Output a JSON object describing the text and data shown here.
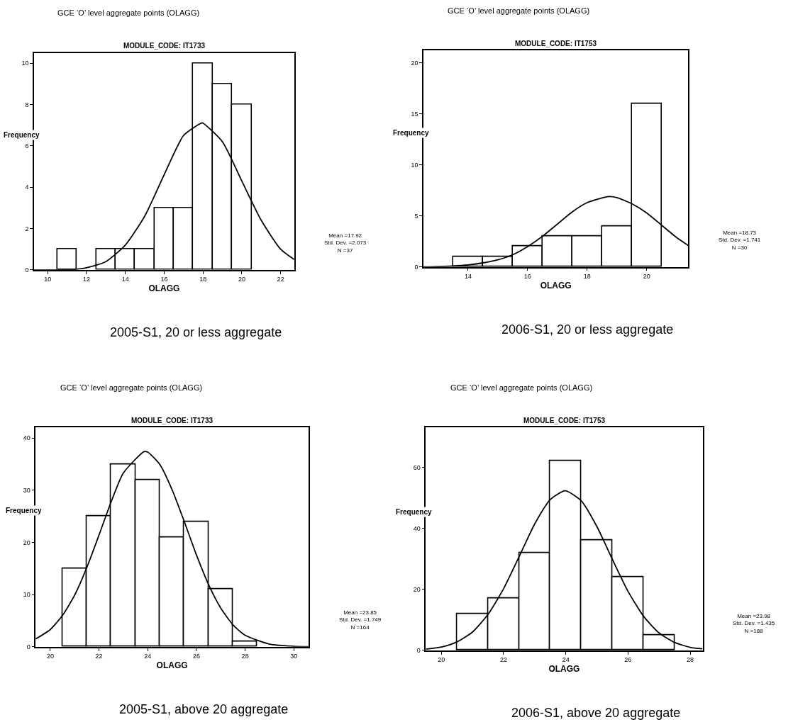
{
  "chart_data": [
    {
      "type": "histogram",
      "title": "GCE ‘O’ level aggregate points (OLAGG)",
      "subtitle": "MODULE_CODE: IT1733",
      "xlabel": "OLAGG",
      "ylabel": "Frequency",
      "series": [
        {
          "color": "#ffffff",
          "bins": [
            10.5,
            11.5,
            12.5,
            13.5,
            14.5,
            15.5,
            16.5,
            17.5,
            18.5,
            19.5,
            20.5
          ],
          "values": [
            1,
            0,
            1,
            1,
            1,
            3,
            3,
            10,
            9,
            8
          ]
        },
        {
          "type": "line",
          "color": "#000000",
          "x": [
            9.3,
            10,
            11,
            12,
            13,
            14,
            15,
            16,
            17,
            17.92,
            18,
            19,
            20,
            21,
            22,
            22.7
          ],
          "values": [
            0.0,
            0.0,
            0.0,
            0.1,
            0.4,
            1.2,
            2.6,
            4.6,
            6.5,
            7.1,
            7.1,
            6.2,
            4.3,
            2.4,
            1.0,
            0.5
          ]
        }
      ],
      "xlim": [
        9.3,
        22.7
      ],
      "ylim": [
        0,
        10.5
      ],
      "xticks": [
        10,
        12,
        14,
        16,
        18,
        20,
        22
      ],
      "yticks": [
        0,
        2,
        4,
        6,
        8,
        10
      ],
      "annotations": [
        "Mean =17.92\nStd. Dev. =2.073\nN =37",
        "2005-S1, 20 or less aggregate"
      ]
    },
    {
      "type": "histogram",
      "title": "GCE ‘O’ level aggregate points (OLAGG)",
      "subtitle": "MODULE_CODE: IT1753",
      "xlabel": "OLAGG",
      "ylabel": "Frequency",
      "series": [
        {
          "color": "#ffffff",
          "bins": [
            13.5,
            14.5,
            15.5,
            16.5,
            17.5,
            18.5,
            19.5,
            20.5
          ],
          "values": [
            1,
            1,
            2,
            3,
            3,
            4,
            16
          ]
        },
        {
          "type": "line",
          "color": "#000000",
          "x": [
            12.5,
            13.5,
            14,
            14.5,
            15,
            15.5,
            16,
            16.5,
            17,
            17.5,
            18,
            18.73,
            19,
            19.5,
            20,
            20.5,
            21,
            21.4
          ],
          "values": [
            0.0,
            0.1,
            0.2,
            0.4,
            0.7,
            1.2,
            2.0,
            3.0,
            4.2,
            5.4,
            6.3,
            6.9,
            6.8,
            6.2,
            5.3,
            4.1,
            2.9,
            2.1
          ]
        }
      ],
      "xlim": [
        12.5,
        21.4
      ],
      "ylim": [
        0,
        21.2
      ],
      "xticks": [
        14,
        16,
        18,
        20
      ],
      "yticks": [
        0,
        5,
        10,
        15,
        20
      ],
      "annotations": [
        "Mean =18.73\nStd. Dev. =1.741\nN =30",
        "2006-S1, 20 or less aggregate"
      ]
    },
    {
      "type": "histogram",
      "title": "GCE ‘O’ level aggregate points (OLAGG)",
      "subtitle": "MODULE_CODE: IT1733",
      "xlabel": "OLAGG",
      "ylabel": "Frequency",
      "series": [
        {
          "color": "#ffffff",
          "bins": [
            20.5,
            21.5,
            22.5,
            23.5,
            24.5,
            25.5,
            26.5,
            27.5,
            28.5
          ],
          "values": [
            15,
            25,
            35,
            32,
            21,
            24,
            11,
            1
          ]
        },
        {
          "type": "line",
          "color": "#000000",
          "x": [
            19.4,
            20,
            20.5,
            21,
            21.5,
            22,
            22.5,
            23,
            23.85,
            24,
            24.5,
            25,
            25.5,
            26,
            26.5,
            27,
            27.5,
            28,
            29,
            30,
            30.6
          ],
          "values": [
            1.5,
            3.3,
            6.0,
            9.9,
            15.2,
            21.4,
            27.8,
            33.3,
            37.4,
            37.3,
            34.9,
            30.1,
            24.0,
            17.6,
            11.9,
            7.4,
            4.2,
            2.2,
            0.5,
            0.1,
            0.0
          ]
        }
      ],
      "xlim": [
        19.4,
        30.6
      ],
      "ylim": [
        0,
        42
      ],
      "xticks": [
        20,
        22,
        24,
        26,
        28,
        30
      ],
      "yticks": [
        0,
        10,
        20,
        30,
        40
      ],
      "annotations": [
        "Mean =23.85\nStd. Dev. =1.749\nN =164",
        "2005-S1, above 20 aggregate"
      ]
    },
    {
      "type": "histogram",
      "title": "GCE ‘O’ level aggregate points (OLAGG)",
      "subtitle": "MODULE_CODE: IT1753",
      "xlabel": "OLAGG",
      "ylabel": "Frequency",
      "series": [
        {
          "color": "#ffffff",
          "bins": [
            20.5,
            21.5,
            22.5,
            23.5,
            24.5,
            25.5,
            26.5,
            27.5
          ],
          "values": [
            12,
            17,
            32,
            62,
            36,
            24,
            5
          ]
        },
        {
          "type": "line",
          "color": "#000000",
          "x": [
            19.5,
            20,
            20.5,
            21,
            21.5,
            22,
            22.5,
            23,
            23.5,
            23.98,
            24.5,
            25,
            25.5,
            26,
            26.5,
            27,
            27.5,
            28,
            28.4
          ],
          "values": [
            0.4,
            1.1,
            2.8,
            6.0,
            11.8,
            20.2,
            30.7,
            41.4,
            49.4,
            52.3,
            49.0,
            40.6,
            29.8,
            19.4,
            11.2,
            5.7,
            2.6,
            1.0,
            0.5
          ]
        }
      ],
      "xlim": [
        19.5,
        28.4
      ],
      "ylim": [
        0,
        73
      ],
      "xticks": [
        20,
        22,
        24,
        26,
        28
      ],
      "yticks": [
        0,
        20,
        40,
        60
      ],
      "annotations": [
        "Mean =23.98\nStd. Dev. =1.435\nN =188",
        "2006-S1, above 20 aggregate"
      ]
    }
  ]
}
